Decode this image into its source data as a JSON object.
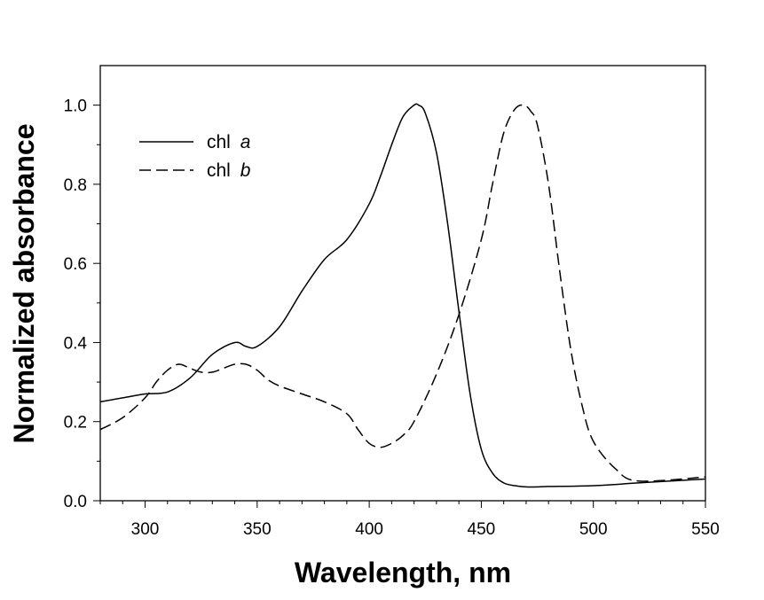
{
  "chart_data": {
    "type": "line",
    "title": "",
    "xlabel": "Wavelength, nm",
    "ylabel": "Normalized absorbance",
    "xlim": [
      280,
      550
    ],
    "ylim": [
      0.0,
      1.1
    ],
    "xticks": [
      300,
      350,
      400,
      450,
      500,
      550
    ],
    "xtick_labels": [
      "300",
      "350",
      "400",
      "450",
      "500",
      "550"
    ],
    "yticks": [
      0.0,
      0.2,
      0.4,
      0.6,
      0.8,
      1.0
    ],
    "ytick_labels": [
      "0.0",
      "0.2",
      "0.4",
      "0.6",
      "0.8",
      "1.0"
    ],
    "grid": false,
    "legend_position": "upper-left",
    "series": [
      {
        "name_prefix": "chl ",
        "name_italic": "a",
        "line_style": "solid",
        "color": "#000000",
        "x": [
          280,
          290,
          300,
          310,
          320,
          330,
          340,
          345,
          350,
          360,
          370,
          380,
          390,
          400,
          405,
          410,
          415,
          420,
          422,
          425,
          430,
          435,
          440,
          445,
          450,
          455,
          460,
          465,
          470,
          475,
          480,
          500,
          520,
          550
        ],
        "y": [
          0.25,
          0.26,
          0.27,
          0.275,
          0.31,
          0.37,
          0.4,
          0.39,
          0.39,
          0.44,
          0.53,
          0.61,
          0.66,
          0.75,
          0.82,
          0.9,
          0.97,
          1.0,
          1.0,
          0.98,
          0.88,
          0.7,
          0.48,
          0.27,
          0.13,
          0.07,
          0.045,
          0.038,
          0.035,
          0.035,
          0.036,
          0.038,
          0.045,
          0.055
        ]
      },
      {
        "name_prefix": "chl ",
        "name_italic": "b",
        "line_style": "dashed",
        "color": "#000000",
        "x": [
          280,
          290,
          300,
          305,
          310,
          315,
          320,
          325,
          330,
          335,
          340,
          345,
          350,
          355,
          360,
          370,
          380,
          390,
          395,
          400,
          405,
          410,
          415,
          420,
          430,
          440,
          450,
          455,
          460,
          465,
          469,
          472,
          475,
          480,
          485,
          490,
          495,
          500,
          510,
          520,
          550
        ],
        "y": [
          0.18,
          0.21,
          0.26,
          0.3,
          0.33,
          0.345,
          0.335,
          0.325,
          0.325,
          0.335,
          0.345,
          0.345,
          0.33,
          0.305,
          0.29,
          0.27,
          0.25,
          0.22,
          0.18,
          0.145,
          0.135,
          0.145,
          0.165,
          0.2,
          0.32,
          0.47,
          0.66,
          0.8,
          0.93,
          0.99,
          1.0,
          0.985,
          0.95,
          0.8,
          0.58,
          0.38,
          0.24,
          0.15,
          0.08,
          0.05,
          0.06
        ]
      }
    ]
  }
}
